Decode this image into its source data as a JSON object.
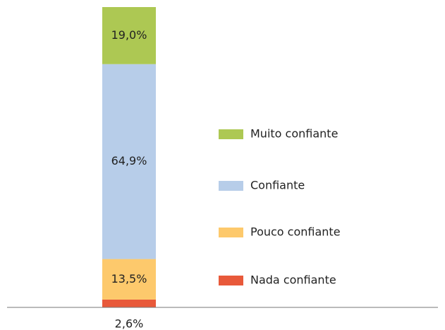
{
  "chart_data": {
    "type": "stacked_bar",
    "categories": [
      null
    ],
    "series": [
      {
        "name": "Nada confiante",
        "color": "#e8593a",
        "values": [
          2.6
        ],
        "value_labels": [
          "2,6%"
        ]
      },
      {
        "name": "Pouco confiante",
        "color": "#fdc96c",
        "values": [
          13.5
        ],
        "value_labels": [
          "13,5%"
        ]
      },
      {
        "name": "Confiante",
        "color": "#b7cde9",
        "values": [
          64.9
        ],
        "value_labels": [
          "64,9%"
        ]
      },
      {
        "name": "Muito confiante",
        "color": "#adc853",
        "values": [
          19.0
        ],
        "value_labels": [
          "19,0%"
        ]
      }
    ]
  }
}
